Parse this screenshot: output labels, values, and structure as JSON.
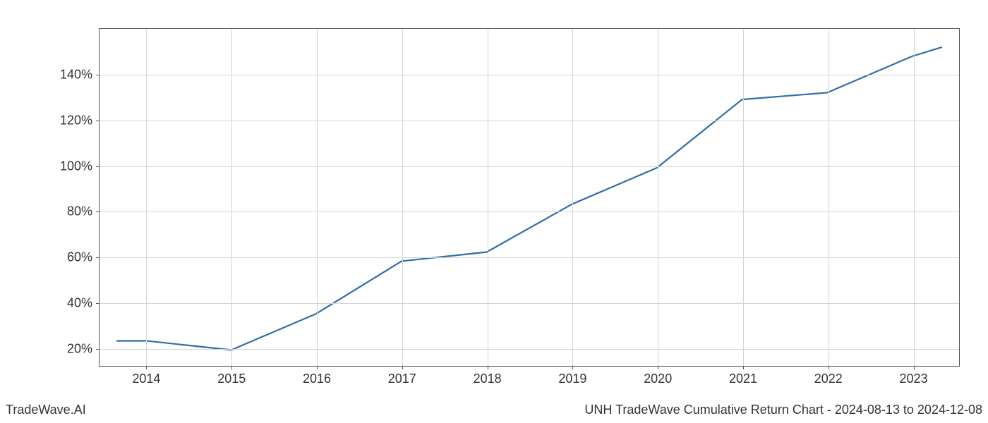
{
  "chart": {
    "type": "line",
    "background_color": "#ffffff",
    "grid_color": "#d5d5d5",
    "border_color": "#555555",
    "line_color": "#2f6eaa",
    "line_width": 2.2,
    "tick_font_size": 18,
    "tick_color": "#333333",
    "x": {
      "ticks": [
        2014,
        2015,
        2016,
        2017,
        2018,
        2019,
        2020,
        2021,
        2022,
        2023
      ],
      "tick_labels": [
        "2014",
        "2015",
        "2016",
        "2017",
        "2018",
        "2019",
        "2020",
        "2021",
        "2022",
        "2023"
      ],
      "lim": [
        2013.45,
        2023.55
      ]
    },
    "y": {
      "ticks": [
        20,
        40,
        60,
        80,
        100,
        120,
        140
      ],
      "tick_labels": [
        "20%",
        "40%",
        "60%",
        "80%",
        "100%",
        "120%",
        "140%"
      ],
      "lim": [
        12,
        160
      ]
    },
    "series": [
      {
        "name": "cumulative_return",
        "x": [
          2013.65,
          2014,
          2015,
          2016,
          2017,
          2018,
          2019,
          2020,
          2021,
          2022,
          2023,
          2023.35
        ],
        "y": [
          23,
          23,
          19,
          35,
          58,
          62,
          83,
          99,
          129,
          132,
          148,
          152
        ]
      }
    ]
  },
  "footer": {
    "left": "TradeWave.AI",
    "right": "UNH TradeWave Cumulative Return Chart - 2024-08-13 to 2024-12-08"
  }
}
